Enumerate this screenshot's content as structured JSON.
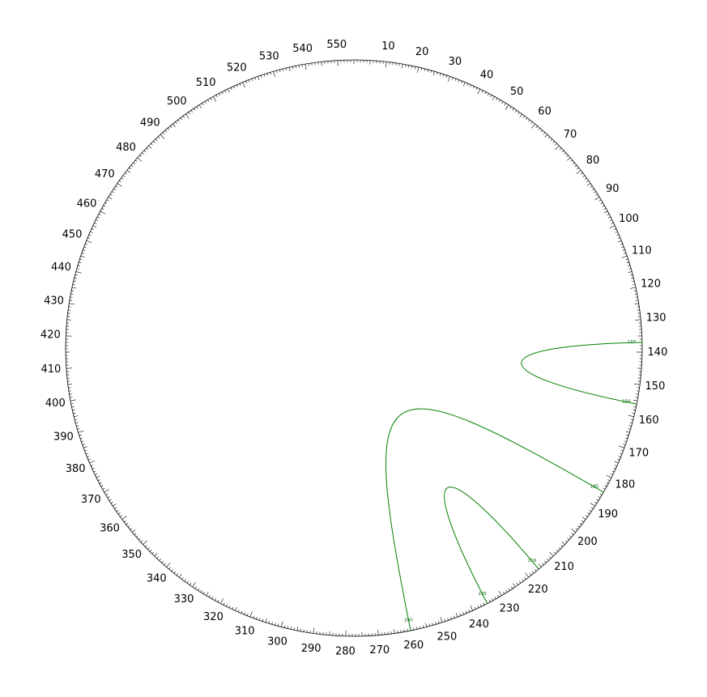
{
  "diagram": {
    "type": "circular-arc-plot",
    "sequence_length": 555,
    "tick_labels": [
      "10",
      "20",
      "30",
      "40",
      "50",
      "60",
      "70",
      "80",
      "90",
      "100",
      "110",
      "120",
      "130",
      "140",
      "150",
      "160",
      "170",
      "180",
      "190",
      "200",
      "210",
      "220",
      "230",
      "240",
      "250",
      "260",
      "270",
      "280",
      "290",
      "300",
      "310",
      "320",
      "330",
      "340",
      "350",
      "360",
      "370",
      "380",
      "390",
      "400",
      "410",
      "420",
      "430",
      "440",
      "450",
      "460",
      "470",
      "480",
      "490",
      "500",
      "510",
      "520",
      "530",
      "540",
      "550"
    ],
    "arcs": [
      {
        "start": 137,
        "end": 156,
        "start_label": "137",
        "end_label": "156"
      },
      {
        "start": 185,
        "end": 260,
        "start_label": "185",
        "end_label": "260"
      },
      {
        "start": 216,
        "end": 235,
        "start_label": "216",
        "end_label": "235"
      }
    ],
    "colors": {
      "arc": "#008000",
      "arc_label": "#006400",
      "ticks": "#000000"
    }
  }
}
